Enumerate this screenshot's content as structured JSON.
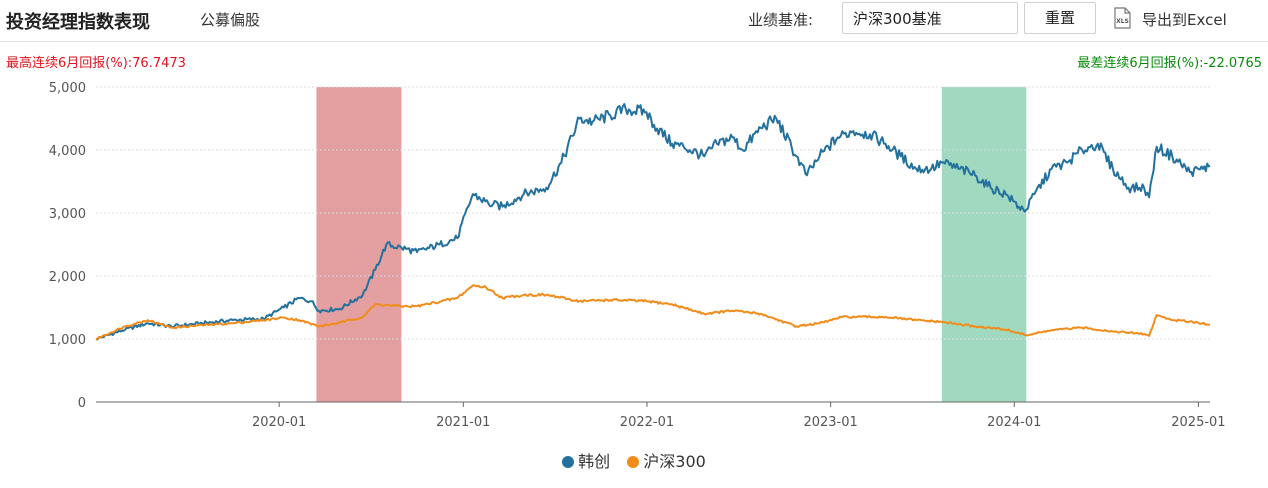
{
  "header": {
    "title": "投资经理指数表现",
    "subtitle": "公募偏股",
    "benchmark_label": "业绩基准:",
    "benchmark_value": "沪深300基准",
    "reset_label": "重置",
    "export_label": "导出到Excel",
    "export_icon": "xls-file-icon"
  },
  "stats": {
    "best_label": "最高连续6月回报(%):",
    "best_value": "76.7473",
    "worst_label": "最差连续6月回报(%):",
    "worst_value": "-22.0765"
  },
  "colors": {
    "series_a": "#24719e",
    "series_b": "#f18c1a",
    "best_band": "#d87777",
    "worst_band": "#7ccaa6",
    "best_text": "#e0141c",
    "worst_text": "#0a8a0a"
  },
  "chart_data": {
    "type": "line",
    "title": "",
    "xlabel": "",
    "ylabel": "",
    "ylim": [
      0,
      5000
    ],
    "yticks": [
      0,
      1000,
      2000,
      3000,
      4000,
      5000
    ],
    "ytick_labels": [
      "0",
      "1,000",
      "2,000",
      "3,000",
      "4,000",
      "5,000"
    ],
    "xlim": [
      "2019-01-02",
      "2025-01-24"
    ],
    "xticks": [
      "2020-01",
      "2021-01",
      "2022-01",
      "2023-01",
      "2024-01",
      "2025-01"
    ],
    "grid": true,
    "legend_position": "bottom-center",
    "bands": [
      {
        "start": "2020-03-15",
        "end": "2020-08-31",
        "kind": "best"
      },
      {
        "start": "2023-08-10",
        "end": "2024-01-25",
        "kind": "worst"
      }
    ],
    "series": [
      {
        "name": "韩创",
        "x": [
          "2019-01-02",
          "2019-03-01",
          "2019-04-15",
          "2019-06-01",
          "2019-08-01",
          "2019-10-01",
          "2019-12-01",
          "2020-01-10",
          "2020-02-10",
          "2020-03-05",
          "2020-03-20",
          "2020-05-01",
          "2020-06-15",
          "2020-07-10",
          "2020-08-01",
          "2020-08-31",
          "2020-10-01",
          "2020-11-15",
          "2020-12-20",
          "2021-01-20",
          "2021-02-20",
          "2021-03-20",
          "2021-05-01",
          "2021-06-15",
          "2021-07-15",
          "2021-08-20",
          "2021-09-15",
          "2021-10-20",
          "2021-11-20",
          "2021-12-31",
          "2022-01-15",
          "2022-02-20",
          "2022-03-15",
          "2022-04-25",
          "2022-05-20",
          "2022-06-20",
          "2022-07-10",
          "2022-08-15",
          "2022-09-15",
          "2022-10-25",
          "2022-11-15",
          "2022-12-10",
          "2023-01-15",
          "2023-02-15",
          "2023-03-20",
          "2023-04-20",
          "2023-05-20",
          "2023-06-20",
          "2023-07-20",
          "2023-08-10",
          "2023-09-15",
          "2023-10-15",
          "2023-11-15",
          "2023-12-15",
          "2024-01-10",
          "2024-01-25",
          "2024-02-10",
          "2024-03-15",
          "2024-04-15",
          "2024-05-15",
          "2024-06-15",
          "2024-07-15",
          "2024-08-15",
          "2024-09-15",
          "2024-09-25",
          "2024-10-10",
          "2024-11-10",
          "2024-12-15",
          "2025-01-10",
          "2025-01-24"
        ],
        "values": [
          1000,
          1150,
          1250,
          1200,
          1250,
          1300,
          1320,
          1500,
          1650,
          1600,
          1450,
          1480,
          1700,
          2100,
          2500,
          2450,
          2380,
          2500,
          2600,
          3300,
          3150,
          3100,
          3300,
          3400,
          3800,
          4500,
          4450,
          4550,
          4650,
          4600,
          4400,
          4100,
          4050,
          3900,
          4100,
          4200,
          4000,
          4350,
          4500,
          3900,
          3600,
          3900,
          4200,
          4300,
          4250,
          4100,
          3900,
          3700,
          3700,
          3800,
          3700,
          3600,
          3400,
          3300,
          3100,
          3050,
          3300,
          3700,
          3800,
          4000,
          4100,
          3700,
          3400,
          3400,
          3250,
          4050,
          3900,
          3650,
          3700,
          3750
        ]
      },
      {
        "name": "沪深300",
        "x": [
          "2019-01-02",
          "2019-03-01",
          "2019-04-15",
          "2019-06-01",
          "2019-08-01",
          "2019-10-01",
          "2019-12-01",
          "2020-01-10",
          "2020-02-10",
          "2020-03-20",
          "2020-05-01",
          "2020-06-15",
          "2020-07-10",
          "2020-08-31",
          "2020-10-01",
          "2020-12-20",
          "2021-01-20",
          "2021-02-15",
          "2021-03-20",
          "2021-05-01",
          "2021-06-15",
          "2021-08-20",
          "2021-10-20",
          "2021-12-31",
          "2022-02-20",
          "2022-04-25",
          "2022-06-20",
          "2022-08-15",
          "2022-10-25",
          "2022-12-10",
          "2023-01-25",
          "2023-04-20",
          "2023-06-20",
          "2023-08-10",
          "2023-10-15",
          "2023-12-15",
          "2024-01-25",
          "2024-03-15",
          "2024-05-15",
          "2024-07-15",
          "2024-09-15",
          "2024-09-25",
          "2024-10-10",
          "2024-11-10",
          "2024-12-15",
          "2025-01-24"
        ],
        "values": [
          1000,
          1200,
          1300,
          1180,
          1220,
          1250,
          1300,
          1340,
          1300,
          1200,
          1260,
          1350,
          1550,
          1520,
          1520,
          1650,
          1850,
          1820,
          1650,
          1700,
          1700,
          1600,
          1620,
          1600,
          1550,
          1400,
          1450,
          1400,
          1200,
          1250,
          1350,
          1350,
          1300,
          1270,
          1200,
          1150,
          1060,
          1140,
          1180,
          1120,
          1080,
          1050,
          1380,
          1300,
          1280,
          1230
        ]
      }
    ]
  }
}
